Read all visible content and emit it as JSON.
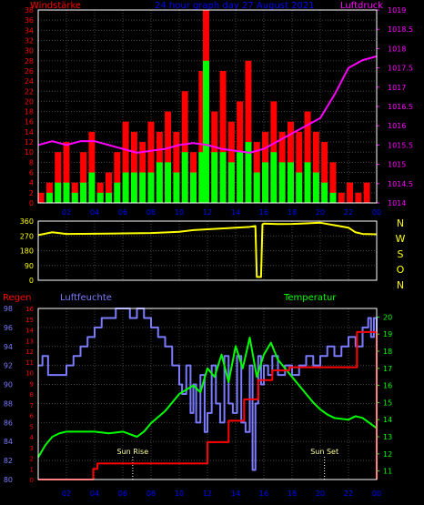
{
  "header": {
    "left_label": "Windstärke",
    "title": "24 hour graph day  27 August 2021",
    "right_label": "Luftdruck"
  },
  "direction_axis": {
    "left_ticks": [
      "360",
      "270",
      "180",
      "90",
      "0"
    ],
    "right_letters": [
      "N",
      "W",
      "S",
      "O",
      "N"
    ]
  },
  "bottom_labels": {
    "rain": "Regen",
    "humidity": "Luftfeuchte",
    "temperature": "Temperatur",
    "sunrise": "Sun Rise",
    "sunset": "Sun Set"
  },
  "colors": {
    "background": "#000000",
    "frame": "#ffffff",
    "grid": "#444444",
    "wind_gust": "#ff0000",
    "wind_avg": "#00ff00",
    "pressure": "#ff00ff",
    "direction": "#ffff00",
    "rain": "#ff0000",
    "humidity": "#7b7bff",
    "temperature": "#00ff00",
    "title": "#0000ff"
  },
  "chart_data": [
    {
      "type": "bar",
      "name": "wind-pressure",
      "x_ticks": [
        "02",
        "04",
        "06",
        "08",
        "10",
        "12",
        "14",
        "16",
        "18",
        "20",
        "22",
        "00"
      ],
      "xlim": [
        0,
        24
      ],
      "ylim_left": [
        0,
        38
      ],
      "yticks_left": [
        0,
        2,
        4,
        6,
        8,
        10,
        12,
        14,
        16,
        18,
        20,
        22,
        24,
        26,
        28,
        30,
        32,
        34,
        36,
        38
      ],
      "ylim_right": [
        1014,
        1019
      ],
      "yticks_right": [
        "1014",
        "1014.5",
        "1015",
        "1015.5",
        "1016",
        "1016.5",
        "1017",
        "1017.5",
        "1018",
        "1018.5",
        "1019"
      ],
      "series": [
        {
          "name": "Windstärke",
          "axis": "left",
          "x": [
            0.2,
            0.8,
            1.4,
            2.0,
            2.6,
            3.2,
            3.8,
            4.4,
            5.0,
            5.6,
            6.2,
            6.8,
            7.4,
            8.0,
            8.6,
            9.2,
            9.8,
            10.4,
            11.0,
            11.6,
            11.9,
            12.5,
            13.1,
            13.7,
            14.3,
            14.9,
            15.5,
            16.1,
            16.7,
            17.3,
            17.9,
            18.5,
            19.1,
            19.7,
            20.3,
            20.9,
            21.5,
            22.1,
            22.7,
            23.3
          ],
          "gust": [
            2,
            4,
            10,
            12,
            4,
            10,
            14,
            4,
            6,
            10,
            16,
            14,
            12,
            16,
            14,
            18,
            14,
            22,
            10,
            26,
            38,
            18,
            26,
            16,
            20,
            28,
            12,
            14,
            20,
            14,
            16,
            14,
            18,
            14,
            12,
            8,
            2,
            4,
            2,
            4
          ],
          "avg": [
            0,
            2,
            4,
            4,
            2,
            4,
            6,
            2,
            2,
            4,
            6,
            6,
            6,
            6,
            8,
            8,
            6,
            10,
            6,
            10,
            28,
            10,
            10,
            8,
            10,
            12,
            6,
            8,
            10,
            8,
            8,
            6,
            8,
            6,
            4,
            2,
            0,
            0,
            0,
            0
          ]
        },
        {
          "name": "Luftdruck",
          "axis": "right",
          "x": [
            0,
            1,
            2,
            3,
            4,
            5,
            6,
            7,
            8,
            9,
            10,
            11,
            12,
            13,
            14,
            15,
            16,
            17,
            18,
            19,
            20,
            21,
            22,
            23,
            24
          ],
          "values": [
            1015.5,
            1015.6,
            1015.5,
            1015.6,
            1015.6,
            1015.5,
            1015.4,
            1015.3,
            1015.35,
            1015.4,
            1015.5,
            1015.55,
            1015.5,
            1015.4,
            1015.35,
            1015.3,
            1015.4,
            1015.6,
            1015.8,
            1016.0,
            1016.2,
            1016.8,
            1017.5,
            1017.7,
            1017.8
          ]
        }
      ]
    },
    {
      "type": "line",
      "name": "wind-direction",
      "xlim": [
        0,
        24
      ],
      "ylim": [
        0,
        360
      ],
      "yticks": [
        0,
        90,
        180,
        270,
        360
      ],
      "series": [
        {
          "name": "Windrichtung",
          "x": [
            0,
            1,
            2,
            4,
            6,
            8,
            10,
            11,
            12,
            13,
            14,
            15,
            15.4,
            15.5,
            15.8,
            15.9,
            16,
            17,
            18,
            19,
            20,
            21,
            22,
            22.5,
            23,
            24
          ],
          "values": [
            275,
            292,
            282,
            283,
            285,
            287,
            295,
            305,
            310,
            315,
            320,
            325,
            330,
            20,
            20,
            340,
            345,
            342,
            343,
            346,
            350,
            335,
            320,
            292,
            282,
            280
          ]
        }
      ]
    },
    {
      "type": "line",
      "name": "rain-humidity-temperature",
      "x_ticks": [
        "02",
        "04",
        "06",
        "08",
        "10",
        "12",
        "14",
        "16",
        "18",
        "20",
        "22",
        "00"
      ],
      "xlim": [
        0,
        24
      ],
      "rain_axis": {
        "ylim": [
          0,
          16
        ],
        "yticks": [
          0,
          1,
          2,
          3,
          4,
          5,
          6,
          7,
          8,
          9,
          10,
          11,
          12,
          13,
          14,
          15,
          16
        ]
      },
      "humidity_axis": {
        "ylim": [
          80,
          98
        ],
        "yticks": [
          80,
          82,
          84,
          86,
          88,
          90,
          92,
          94,
          96,
          98
        ]
      },
      "temperature_axis": {
        "ylim": [
          10.5,
          20.5
        ],
        "yticks": [
          11,
          12,
          13,
          14,
          15,
          16,
          17,
          18,
          19,
          20
        ]
      },
      "sunrise_x": 6.7,
      "sunset_x": 20.3,
      "series": [
        {
          "name": "Regen",
          "x": [
            0,
            3.5,
            3.9,
            4.2,
            11.8,
            12.0,
            13.3,
            13.5,
            14.4,
            14.6,
            15.4,
            15.6,
            16.3,
            16.6,
            17.5,
            17.8,
            22.2,
            22.6,
            23.9,
            24
          ],
          "values": [
            0,
            0,
            1,
            1.5,
            1.5,
            3.5,
            3.5,
            5.5,
            5.5,
            7.5,
            7.5,
            9.3,
            9.3,
            10.2,
            10.2,
            10.5,
            10.5,
            13.8,
            13.8,
            0
          ]
        },
        {
          "name": "Luftfeuchte",
          "x": [
            0,
            0.3,
            0.7,
            2.0,
            2.5,
            3.0,
            3.5,
            4.0,
            4.5,
            5.0,
            5.5,
            6.0,
            6.5,
            7.0,
            7.5,
            8.0,
            8.5,
            9.0,
            9.5,
            10.0,
            10.2,
            10.5,
            10.8,
            11.0,
            11.2,
            11.5,
            11.8,
            12.0,
            12.3,
            12.6,
            12.9,
            13.2,
            13.5,
            13.8,
            14.1,
            14.4,
            14.7,
            15.0,
            15.2,
            15.4,
            15.6,
            15.8,
            16.0,
            16.3,
            16.6,
            17.0,
            17.5,
            18.0,
            18.5,
            19.0,
            19.5,
            20.0,
            20.5,
            21.0,
            21.5,
            22.0,
            22.5,
            23.0,
            23.4,
            23.6,
            23.8,
            24
          ],
          "values": [
            92,
            93,
            91,
            92,
            93,
            94,
            95,
            96,
            97,
            97,
            98,
            98,
            97,
            98,
            97,
            96,
            95,
            94,
            92,
            90,
            89,
            92,
            87,
            90,
            86,
            91,
            85,
            87,
            92,
            88,
            86,
            93,
            88,
            87,
            93,
            86,
            85,
            92,
            81,
            88,
            93,
            90,
            92,
            91,
            93,
            91,
            92,
            91,
            92,
            93,
            92,
            93,
            94,
            93,
            94,
            95,
            94,
            96,
            97,
            95,
            97,
            80
          ]
        },
        {
          "name": "Temperatur",
          "x": [
            0,
            0.5,
            1.0,
            1.5,
            2.0,
            3.0,
            4.0,
            5.0,
            6.0,
            7.0,
            7.5,
            8.0,
            9.0,
            10.0,
            11.0,
            11.5,
            12.0,
            12.5,
            13.0,
            13.5,
            14.0,
            14.5,
            15.0,
            15.5,
            16.0,
            16.5,
            17.0,
            17.5,
            18.0,
            18.5,
            19.0,
            19.5,
            20.0,
            20.5,
            21.0,
            22.0,
            22.5,
            23.0,
            23.5,
            24.0
          ],
          "values": [
            11.8,
            12.5,
            13.0,
            13.2,
            13.3,
            13.3,
            13.3,
            13.2,
            13.3,
            13.0,
            13.3,
            13.8,
            14.5,
            15.5,
            16.0,
            15.6,
            17.0,
            16.5,
            17.8,
            16.2,
            18.3,
            17.0,
            18.8,
            16.5,
            17.8,
            18.5,
            17.5,
            17.0,
            16.5,
            16.0,
            15.5,
            15.0,
            14.6,
            14.3,
            14.1,
            14.0,
            14.2,
            14.1,
            13.8,
            13.5
          ]
        }
      ]
    }
  ]
}
